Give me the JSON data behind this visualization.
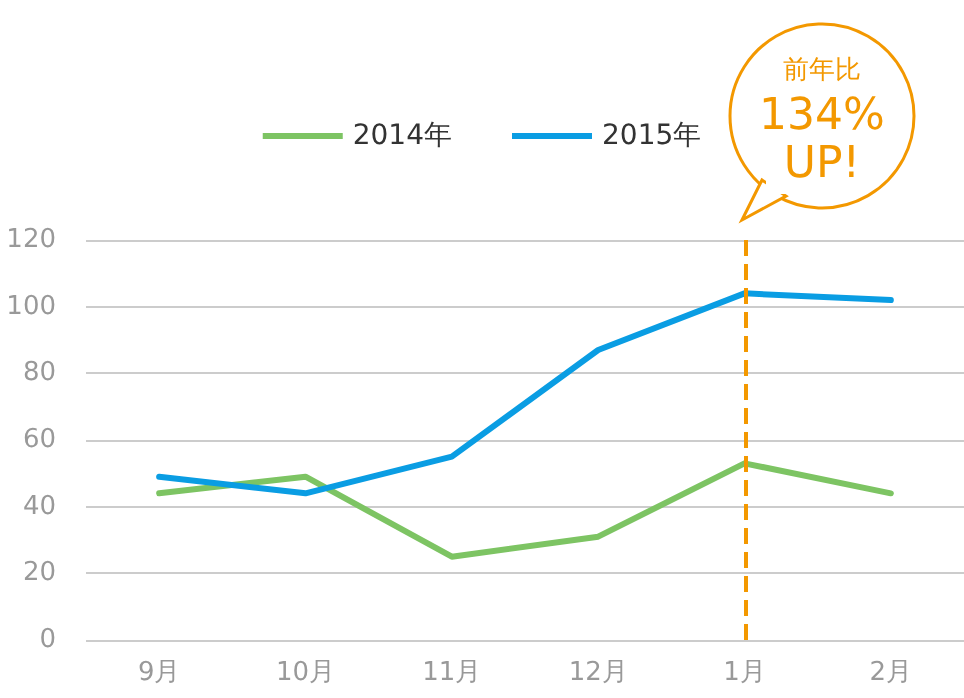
{
  "chart_data": {
    "type": "line",
    "categories": [
      "9月",
      "10月",
      "11月",
      "12月",
      "1月",
      "2月"
    ],
    "series": [
      {
        "name": "2014年",
        "color": "#7dc463",
        "values": [
          44,
          49,
          25,
          31,
          53,
          44
        ]
      },
      {
        "name": "2015年",
        "color": "#0a9de3",
        "values": [
          49,
          44,
          55,
          87,
          104,
          102
        ]
      }
    ],
    "ylim": [
      0,
      120
    ],
    "yticks": [
      0,
      20,
      40,
      60,
      80,
      100,
      120
    ],
    "grid": "y",
    "legend": "top",
    "marker": "none",
    "line_style": "solid",
    "ref_lines": [
      {
        "axis": "x",
        "value": "1月",
        "color": "#f39800",
        "line_style": "dashed"
      }
    ],
    "annotations": [
      "前年比",
      "134%\nUP!"
    ]
  }
}
